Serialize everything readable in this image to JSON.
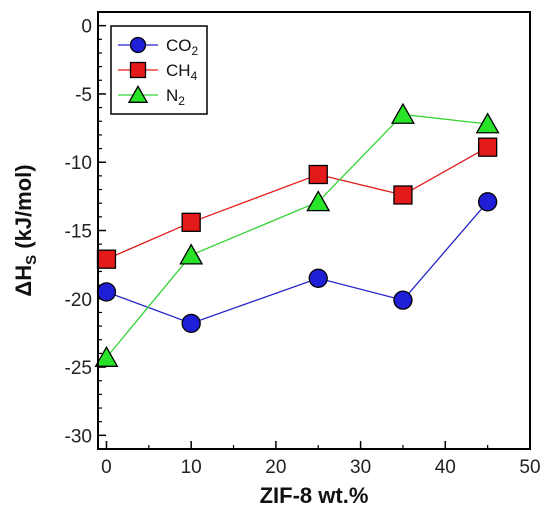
{
  "chart_data": {
    "type": "line",
    "x": [
      0,
      10,
      25,
      35,
      45
    ],
    "xlabel": "ZIF-8 wt.%",
    "ylabel_main": "ΔH",
    "ylabel_sub": "S",
    "ylabel_rest": " (kJ/mol)",
    "xlim": [
      -1,
      50
    ],
    "ylim": [
      -31,
      1
    ],
    "xticks": [
      0,
      10,
      20,
      30,
      40,
      50
    ],
    "yticks": [
      0,
      -5,
      -10,
      -15,
      -20,
      -25,
      -30
    ],
    "grid": false,
    "legend_position": "top-left",
    "series": [
      {
        "name_main": "CO",
        "name_sub": "2",
        "marker": "circle",
        "color": "#1f1fd8",
        "line_color": "#2323c8",
        "values": [
          -19.5,
          -21.8,
          -18.5,
          -20.1,
          -12.9
        ]
      },
      {
        "name_main": "CH",
        "name_sub": "4",
        "marker": "square",
        "color": "#e31a1a",
        "line_color": "#e31a1a",
        "values": [
          -17.1,
          -14.4,
          -10.9,
          -12.4,
          -8.9
        ]
      },
      {
        "name_main": "N",
        "name_sub": "2",
        "marker": "triangle",
        "color": "#29e329",
        "line_color": "#35d435",
        "values": [
          -24.3,
          -16.8,
          -12.9,
          -6.5,
          -7.2
        ]
      }
    ]
  }
}
